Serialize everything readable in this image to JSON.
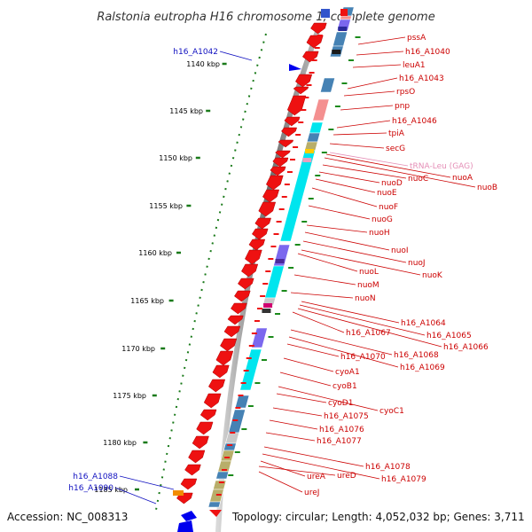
{
  "title": "Ralstonia eutropha H16 chromosome 1, complete genome",
  "accession": "Accession: NC_008313",
  "topology": "Topology: circular; Length: 4,052,032 bp; Genes: 3,711",
  "colors": {
    "forward_label": "#1010c0",
    "reverse_label": "#cc0000",
    "trna_label": "#e58fb7",
    "tick": "#1a7a1a",
    "backbone": "#777777",
    "cds_red": "#ee1111",
    "cog_cyan": "#00e5ee",
    "cog_steel": "#4682b4",
    "cog_pink": "#f49090",
    "cog_purple": "#7b68ee",
    "cog_khaki": "#b8ae6a",
    "cog_gray": "#c8c8c8",
    "orange": "#f28c00"
  },
  "kbp_ticks": [
    "1140 kbp",
    "1145 kbp",
    "1150 kbp",
    "1155 kbp",
    "1160 kbp",
    "1165 kbp",
    "1170 kbp",
    "1175 kbp",
    "1180 kbp",
    "1185 kbp"
  ],
  "forward_labels": [
    "h16_A1042",
    "h16_A1088",
    "h16_A1090"
  ],
  "reverse_labels": [
    "pssA",
    "h16_A1040",
    "leuA1",
    "h16_A1043",
    "rpsO",
    "pnp",
    "h16_A1046",
    "tpiA",
    "secG",
    "tRNA-Leu (GAG)",
    "nuoA",
    "nuoB",
    "nuoC",
    "nuoD",
    "nuoE",
    "nuoF",
    "nuoG",
    "nuoH",
    "nuoI",
    "nuoJ",
    "nuoK",
    "nuoL",
    "nuoM",
    "nuoN",
    "h16_A1064",
    "h16_A1065",
    "h16_A1066",
    "h16_A1067",
    "h16_A1068",
    "h16_A1069",
    "h16_A1070",
    "cyoA1",
    "cyoB1",
    "cyoC1",
    "cyoD1",
    "h16_A1075",
    "h16_A1076",
    "h16_A1077",
    "h16_A1078",
    "h16_A1079",
    "ureA",
    "ureD",
    "ureJ"
  ]
}
